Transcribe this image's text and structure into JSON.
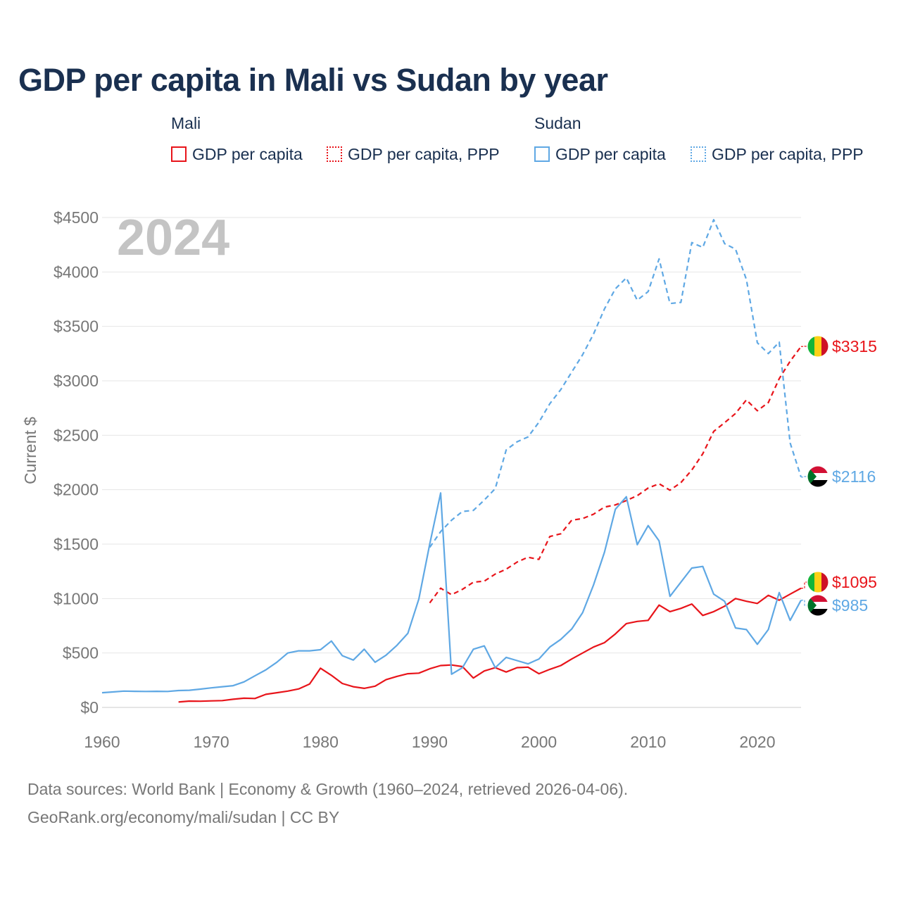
{
  "title": "GDP per capita in Mali vs Sudan by year",
  "legend": {
    "groups": [
      {
        "name": "Mali",
        "items": [
          {
            "label": "GDP per capita",
            "color": "#e8141a",
            "style": "solid"
          },
          {
            "label": "GDP per capita, PPP",
            "color": "#e8141a",
            "style": "dotted"
          }
        ]
      },
      {
        "name": "Sudan",
        "items": [
          {
            "label": "GDP per capita",
            "color": "#5fa8e4",
            "style": "solid"
          },
          {
            "label": "GDP per capita, PPP",
            "color": "#5fa8e4",
            "style": "dotted"
          }
        ]
      }
    ]
  },
  "source": {
    "line1": "Data sources: World Bank | Economy & Growth (1960–2024, retrieved 2026-04-06).",
    "line2": "GeoRank.org/economy/mali/sudan | CC BY"
  },
  "chart_data": {
    "type": "line",
    "title": "GDP per capita in Mali vs Sudan by year",
    "year_label": "2024",
    "xlabel": "",
    "ylabel": "Current $",
    "xlim": [
      1960,
      2024
    ],
    "ylim": [
      0,
      4500
    ],
    "x_ticks": [
      1960,
      1970,
      1980,
      1990,
      2000,
      2010,
      2020
    ],
    "y_ticks": [
      0,
      500,
      1000,
      1500,
      2000,
      2500,
      3000,
      3500,
      4000,
      4500
    ],
    "y_tick_labels": [
      "$0",
      "$500",
      "$1000",
      "$1500",
      "$2000",
      "$2500",
      "$3000",
      "$3500",
      "$4000",
      "$4500"
    ],
    "grid": true,
    "series": [
      {
        "name": "Mali GDP per capita",
        "color": "#e8141a",
        "dash": "solid",
        "end_label": "$1095",
        "flag": "mali-flag",
        "points": [
          [
            1967,
            50
          ],
          [
            1968,
            58
          ],
          [
            1969,
            57
          ],
          [
            1970,
            60
          ],
          [
            1971,
            63
          ],
          [
            1972,
            75
          ],
          [
            1973,
            85
          ],
          [
            1974,
            82
          ],
          [
            1975,
            120
          ],
          [
            1976,
            135
          ],
          [
            1977,
            150
          ],
          [
            1978,
            170
          ],
          [
            1979,
            215
          ],
          [
            1980,
            360
          ],
          [
            1981,
            295
          ],
          [
            1982,
            220
          ],
          [
            1983,
            190
          ],
          [
            1984,
            175
          ],
          [
            1985,
            195
          ],
          [
            1986,
            255
          ],
          [
            1987,
            285
          ],
          [
            1988,
            310
          ],
          [
            1989,
            315
          ],
          [
            1990,
            355
          ],
          [
            1991,
            385
          ],
          [
            1992,
            390
          ],
          [
            1993,
            375
          ],
          [
            1994,
            270
          ],
          [
            1995,
            335
          ],
          [
            1996,
            365
          ],
          [
            1997,
            325
          ],
          [
            1998,
            365
          ],
          [
            1999,
            370
          ],
          [
            2000,
            310
          ],
          [
            2001,
            350
          ],
          [
            2002,
            385
          ],
          [
            2003,
            445
          ],
          [
            2004,
            500
          ],
          [
            2005,
            555
          ],
          [
            2006,
            595
          ],
          [
            2007,
            675
          ],
          [
            2008,
            770
          ],
          [
            2009,
            790
          ],
          [
            2010,
            800
          ],
          [
            2011,
            940
          ],
          [
            2012,
            880
          ],
          [
            2013,
            910
          ],
          [
            2014,
            950
          ],
          [
            2015,
            845
          ],
          [
            2016,
            880
          ],
          [
            2017,
            930
          ],
          [
            2018,
            1000
          ],
          [
            2019,
            975
          ],
          [
            2020,
            955
          ],
          [
            2021,
            1030
          ],
          [
            2022,
            985
          ],
          [
            2023,
            1040
          ],
          [
            2024,
            1095
          ]
        ]
      },
      {
        "name": "Mali GDP per capita, PPP",
        "color": "#e8141a",
        "dash": "dashed",
        "end_label": "$3315",
        "flag": "mali-flag",
        "points": [
          [
            1990,
            960
          ],
          [
            1991,
            1095
          ],
          [
            1992,
            1035
          ],
          [
            1993,
            1085
          ],
          [
            1994,
            1150
          ],
          [
            1995,
            1160
          ],
          [
            1996,
            1225
          ],
          [
            1997,
            1270
          ],
          [
            1998,
            1335
          ],
          [
            1999,
            1380
          ],
          [
            2000,
            1360
          ],
          [
            2001,
            1570
          ],
          [
            2002,
            1595
          ],
          [
            2003,
            1720
          ],
          [
            2004,
            1735
          ],
          [
            2005,
            1775
          ],
          [
            2006,
            1840
          ],
          [
            2007,
            1860
          ],
          [
            2008,
            1900
          ],
          [
            2009,
            1945
          ],
          [
            2010,
            2015
          ],
          [
            2011,
            2055
          ],
          [
            2012,
            1995
          ],
          [
            2013,
            2065
          ],
          [
            2014,
            2180
          ],
          [
            2015,
            2330
          ],
          [
            2016,
            2535
          ],
          [
            2017,
            2615
          ],
          [
            2018,
            2700
          ],
          [
            2019,
            2825
          ],
          [
            2020,
            2725
          ],
          [
            2021,
            2800
          ],
          [
            2022,
            3020
          ],
          [
            2023,
            3180
          ],
          [
            2024,
            3315
          ]
        ]
      },
      {
        "name": "Sudan GDP per capita",
        "color": "#5fa8e4",
        "dash": "solid",
        "end_label": "$985",
        "flag": "sudan-flag",
        "points": [
          [
            1960,
            135
          ],
          [
            1961,
            142
          ],
          [
            1962,
            150
          ],
          [
            1963,
            148
          ],
          [
            1964,
            147
          ],
          [
            1965,
            148
          ],
          [
            1966,
            147
          ],
          [
            1967,
            155
          ],
          [
            1968,
            158
          ],
          [
            1969,
            168
          ],
          [
            1970,
            180
          ],
          [
            1971,
            190
          ],
          [
            1972,
            200
          ],
          [
            1973,
            235
          ],
          [
            1974,
            290
          ],
          [
            1975,
            345
          ],
          [
            1976,
            415
          ],
          [
            1977,
            500
          ],
          [
            1978,
            520
          ],
          [
            1979,
            520
          ],
          [
            1980,
            530
          ],
          [
            1981,
            610
          ],
          [
            1982,
            475
          ],
          [
            1983,
            435
          ],
          [
            1984,
            535
          ],
          [
            1985,
            415
          ],
          [
            1986,
            480
          ],
          [
            1987,
            570
          ],
          [
            1988,
            680
          ],
          [
            1989,
            995
          ],
          [
            1990,
            1500
          ],
          [
            1991,
            1970
          ],
          [
            1992,
            305
          ],
          [
            1993,
            365
          ],
          [
            1994,
            535
          ],
          [
            1995,
            565
          ],
          [
            1996,
            365
          ],
          [
            1997,
            460
          ],
          [
            1998,
            430
          ],
          [
            1999,
            400
          ],
          [
            2000,
            445
          ],
          [
            2001,
            555
          ],
          [
            2002,
            625
          ],
          [
            2003,
            720
          ],
          [
            2004,
            870
          ],
          [
            2005,
            1125
          ],
          [
            2006,
            1425
          ],
          [
            2007,
            1820
          ],
          [
            2008,
            1935
          ],
          [
            2009,
            1495
          ],
          [
            2010,
            1670
          ],
          [
            2011,
            1530
          ],
          [
            2012,
            1020
          ],
          [
            2013,
            1150
          ],
          [
            2014,
            1280
          ],
          [
            2015,
            1295
          ],
          [
            2016,
            1040
          ],
          [
            2017,
            975
          ],
          [
            2018,
            730
          ],
          [
            2019,
            715
          ],
          [
            2020,
            580
          ],
          [
            2021,
            715
          ],
          [
            2022,
            1055
          ],
          [
            2023,
            800
          ],
          [
            2024,
            985
          ]
        ]
      },
      {
        "name": "Sudan GDP per capita, PPP",
        "color": "#5fa8e4",
        "dash": "dashed",
        "end_label": "$2116",
        "flag": "sudan-flag",
        "points": [
          [
            1990,
            1470
          ],
          [
            1991,
            1615
          ],
          [
            1992,
            1720
          ],
          [
            1993,
            1800
          ],
          [
            1994,
            1810
          ],
          [
            1995,
            1905
          ],
          [
            1996,
            2010
          ],
          [
            1997,
            2365
          ],
          [
            1998,
            2440
          ],
          [
            1999,
            2485
          ],
          [
            2000,
            2620
          ],
          [
            2001,
            2790
          ],
          [
            2002,
            2920
          ],
          [
            2003,
            3080
          ],
          [
            2004,
            3240
          ],
          [
            2005,
            3430
          ],
          [
            2006,
            3660
          ],
          [
            2007,
            3845
          ],
          [
            2008,
            3945
          ],
          [
            2009,
            3740
          ],
          [
            2010,
            3820
          ],
          [
            2011,
            4120
          ],
          [
            2012,
            3710
          ],
          [
            2013,
            3720
          ],
          [
            2014,
            4270
          ],
          [
            2015,
            4225
          ],
          [
            2016,
            4480
          ],
          [
            2017,
            4260
          ],
          [
            2018,
            4210
          ],
          [
            2019,
            3930
          ],
          [
            2020,
            3350
          ],
          [
            2021,
            3250
          ],
          [
            2022,
            3355
          ],
          [
            2023,
            2430
          ],
          [
            2024,
            2116
          ]
        ]
      }
    ]
  }
}
